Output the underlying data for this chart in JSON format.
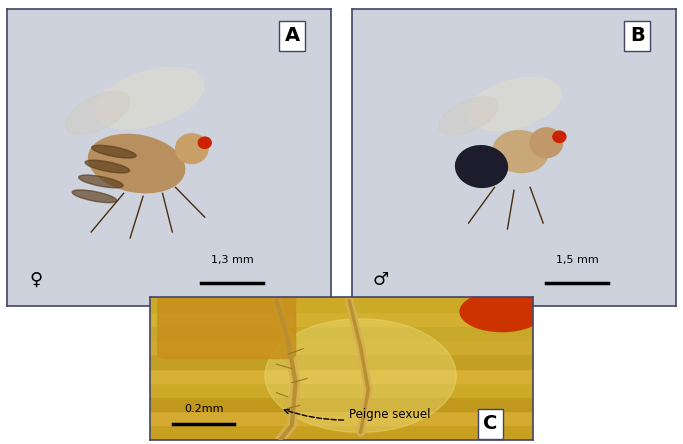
{
  "figure_width": 6.83,
  "figure_height": 4.44,
  "bg_color": "#ffffff",
  "panel_A": {
    "label": "A",
    "symbol": "♀",
    "scale_text": "1,3 mm",
    "bg_color": "#cdd2dc"
  },
  "panel_B": {
    "label": "B",
    "symbol": "♂",
    "scale_text": "1,5 mm",
    "bg_color": "#cdd2dc"
  },
  "panel_C": {
    "label": "C",
    "scale_text": "0.2mm",
    "annotation": "Peigne sexuel",
    "bg_color": "#c8a830"
  },
  "border_color": "#444466",
  "label_fontsize": 14,
  "symbol_fontsize": 13,
  "scale_fontsize": 8,
  "annotation_fontsize": 8.5
}
